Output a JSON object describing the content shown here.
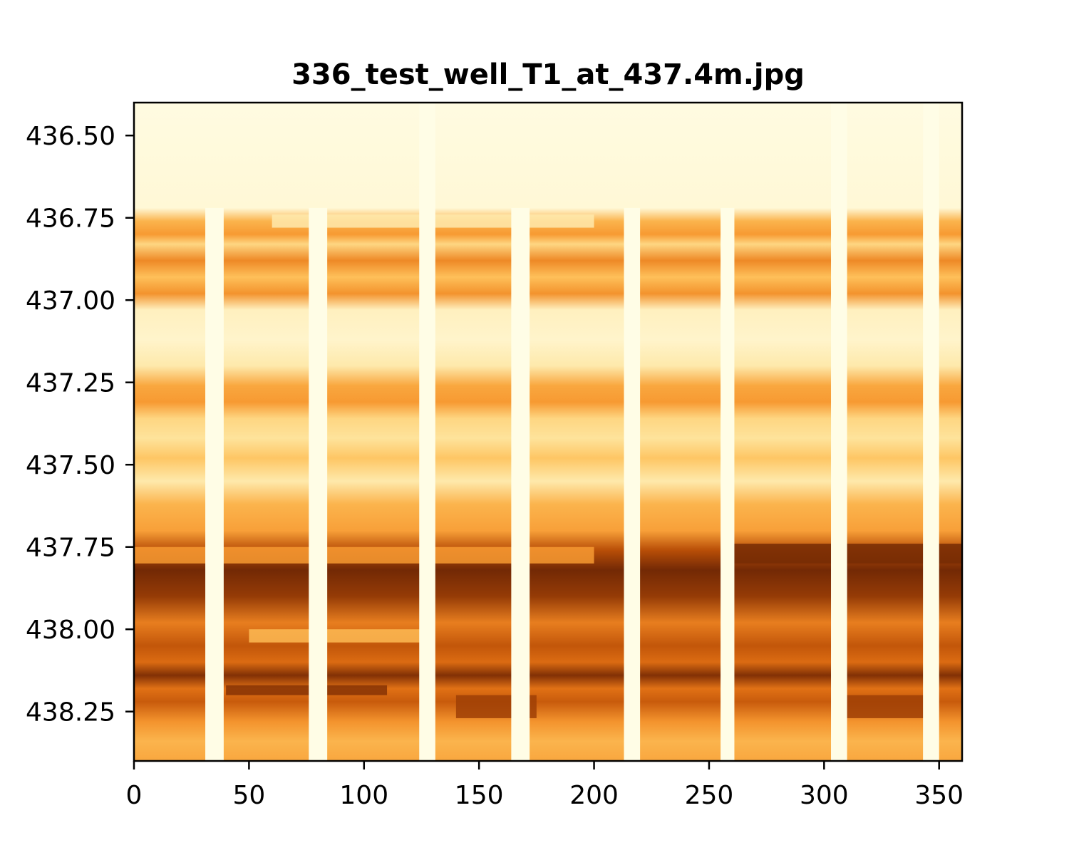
{
  "chart_data": {
    "type": "heatmap",
    "title": "336_test_well_T1_at_437.4m.jpg",
    "xlabel": "",
    "ylabel": "",
    "xlim": [
      0,
      360
    ],
    "ylim": [
      438.4,
      436.4
    ],
    "y_inverted": true,
    "x_ticks": [
      0,
      50,
      100,
      150,
      200,
      250,
      300,
      350
    ],
    "x_tick_labels": [
      "0",
      "50",
      "100",
      "150",
      "200",
      "250",
      "300",
      "350"
    ],
    "y_ticks": [
      436.5,
      436.75,
      437.0,
      437.25,
      437.5,
      437.75,
      438.0,
      438.25
    ],
    "y_tick_labels": [
      "436.50",
      "436.75",
      "437.00",
      "437.25",
      "437.50",
      "437.75",
      "438.00",
      "438.25"
    ],
    "colormap": "YlOrBr",
    "colormap_colors": [
      "#fffde6",
      "#fff2c4",
      "#fee39b",
      "#fec25c",
      "#f79a32",
      "#e06f14",
      "#b84e07",
      "#7a2c05",
      "#662506"
    ],
    "grid": false,
    "legend": "none",
    "depth_profile": [
      {
        "depth": 436.4,
        "level": 0.02
      },
      {
        "depth": 436.72,
        "level": 0.06
      },
      {
        "depth": 436.76,
        "level": 0.42
      },
      {
        "depth": 436.8,
        "level": 0.5
      },
      {
        "depth": 436.83,
        "level": 0.3
      },
      {
        "depth": 436.88,
        "level": 0.55
      },
      {
        "depth": 436.93,
        "level": 0.38
      },
      {
        "depth": 436.98,
        "level": 0.52
      },
      {
        "depth": 437.03,
        "level": 0.14
      },
      {
        "depth": 437.12,
        "level": 0.1
      },
      {
        "depth": 437.2,
        "level": 0.2
      },
      {
        "depth": 437.26,
        "level": 0.46
      },
      {
        "depth": 437.31,
        "level": 0.5
      },
      {
        "depth": 437.36,
        "level": 0.3
      },
      {
        "depth": 437.42,
        "level": 0.25
      },
      {
        "depth": 437.48,
        "level": 0.36
      },
      {
        "depth": 437.55,
        "level": 0.2
      },
      {
        "depth": 437.62,
        "level": 0.42
      },
      {
        "depth": 437.7,
        "level": 0.48
      },
      {
        "depth": 437.76,
        "level": 0.75
      },
      {
        "depth": 437.82,
        "level": 0.92
      },
      {
        "depth": 437.9,
        "level": 0.82
      },
      {
        "depth": 437.98,
        "level": 0.58
      },
      {
        "depth": 438.05,
        "level": 0.72
      },
      {
        "depth": 438.1,
        "level": 0.64
      },
      {
        "depth": 438.14,
        "level": 0.86
      },
      {
        "depth": 438.18,
        "level": 0.62
      },
      {
        "depth": 438.22,
        "level": 0.7
      },
      {
        "depth": 438.28,
        "level": 0.52
      },
      {
        "depth": 438.34,
        "level": 0.42
      },
      {
        "depth": 438.4,
        "level": 0.46
      }
    ],
    "overlay_bands": [
      {
        "depth_from": 436.74,
        "depth_to": 436.78,
        "x_from": 60,
        "x_to": 200,
        "level": 0.2
      },
      {
        "depth_from": 437.75,
        "depth_to": 437.8,
        "x_from": 0,
        "x_to": 200,
        "level": 0.5
      },
      {
        "depth_from": 437.74,
        "depth_to": 437.8,
        "x_from": 260,
        "x_to": 360,
        "level": 0.9
      },
      {
        "depth_from": 438.0,
        "depth_to": 438.04,
        "x_from": 50,
        "x_to": 130,
        "level": 0.4
      },
      {
        "depth_from": 438.17,
        "depth_to": 438.2,
        "x_from": 40,
        "x_to": 110,
        "level": 0.85
      },
      {
        "depth_from": 438.2,
        "depth_to": 438.27,
        "x_from": 140,
        "x_to": 175,
        "level": 0.8
      },
      {
        "depth_from": 438.2,
        "depth_to": 438.27,
        "x_from": 305,
        "x_to": 345,
        "level": 0.8
      }
    ],
    "blank_stripes": [
      {
        "x_from": 31,
        "x_to": 39,
        "depth_from": 436.72,
        "depth_to": 438.4
      },
      {
        "x_from": 76,
        "x_to": 84,
        "depth_from": 436.72,
        "depth_to": 438.4
      },
      {
        "x_from": 124,
        "x_to": 131,
        "depth_from": 436.4,
        "depth_to": 438.4
      },
      {
        "x_from": 164,
        "x_to": 172,
        "depth_from": 436.72,
        "depth_to": 438.4
      },
      {
        "x_from": 213,
        "x_to": 220,
        "depth_from": 436.72,
        "depth_to": 438.4
      },
      {
        "x_from": 255,
        "x_to": 261,
        "depth_from": 436.72,
        "depth_to": 438.4
      },
      {
        "x_from": 303,
        "x_to": 310,
        "depth_from": 436.4,
        "depth_to": 438.4
      },
      {
        "x_from": 343,
        "x_to": 350,
        "depth_from": 436.4,
        "depth_to": 438.4
      }
    ]
  }
}
